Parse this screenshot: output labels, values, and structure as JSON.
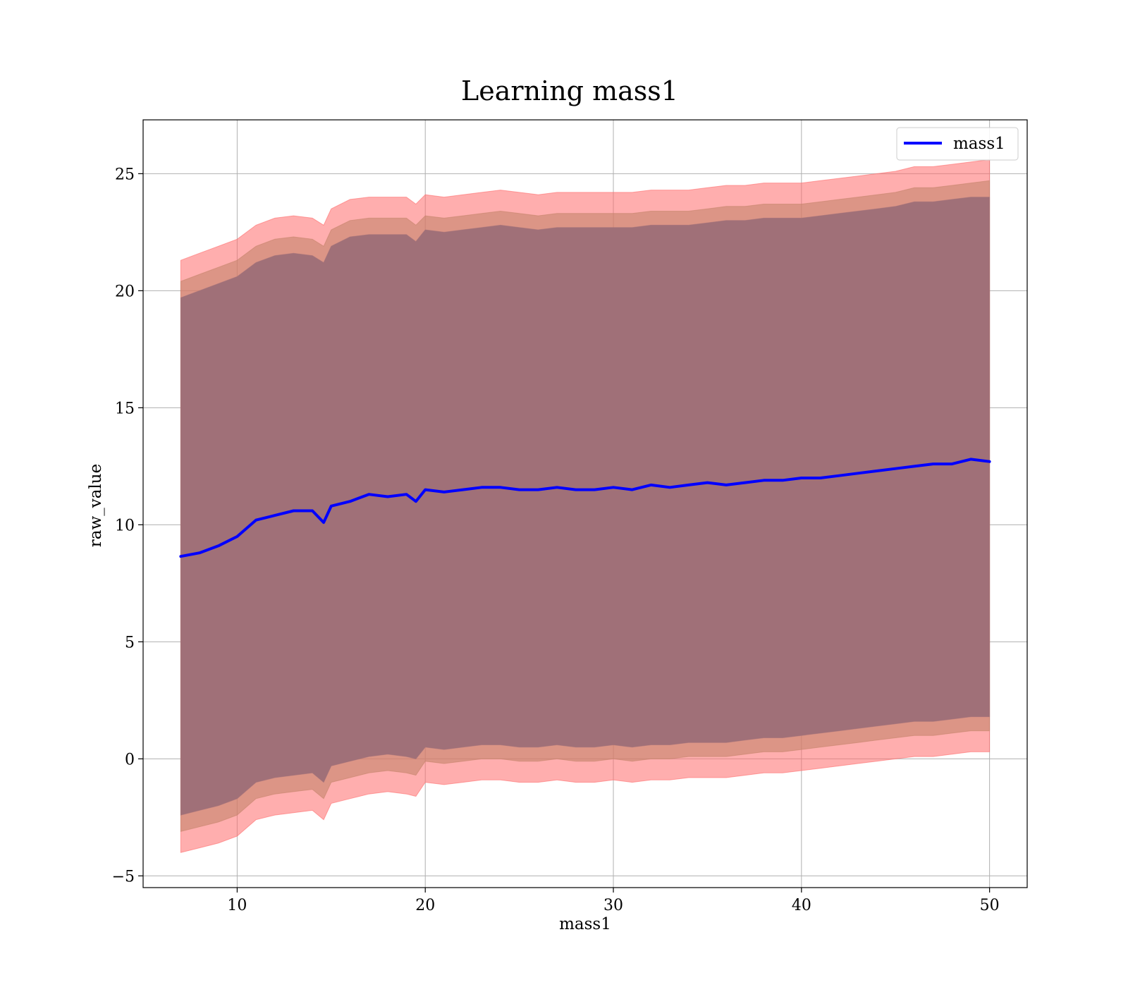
{
  "chart_data": {
    "type": "line",
    "title": "Learning mass1",
    "xlabel": "mass1",
    "ylabel": "raw_value",
    "xlim": [
      5,
      52
    ],
    "ylim": [
      -5.5,
      27.3
    ],
    "xticks": [
      10,
      20,
      30,
      40,
      50
    ],
    "xtick_labels": [
      "10",
      "20",
      "30",
      "40",
      "50"
    ],
    "yticks": [
      -5,
      0,
      5,
      10,
      15,
      20,
      25
    ],
    "ytick_labels": [
      "−5",
      "0",
      "5",
      "10",
      "15",
      "20",
      "25"
    ],
    "grid": true,
    "legend": {
      "position": "top-right",
      "entries": [
        "mass1"
      ]
    },
    "x": [
      7.0,
      8.0,
      9.0,
      10.0,
      11.0,
      12.0,
      13.0,
      14.0,
      14.6,
      15.0,
      16.0,
      17.0,
      18.0,
      19.0,
      19.5,
      20.0,
      21.0,
      22.0,
      23.0,
      24.0,
      25.0,
      26.0,
      27.0,
      28.0,
      29.0,
      30.0,
      31.0,
      32.0,
      33.0,
      34.0,
      35.0,
      36.0,
      37.0,
      38.0,
      39.0,
      40.0,
      41.0,
      42.0,
      43.0,
      44.0,
      45.0,
      46.0,
      47.0,
      48.0,
      49.0,
      50.0
    ],
    "series": [
      {
        "name": "mass1",
        "type": "line",
        "color": "#0000ff",
        "values": [
          8.65,
          8.8,
          9.1,
          9.5,
          10.2,
          10.4,
          10.6,
          10.6,
          10.1,
          10.8,
          11.0,
          11.3,
          11.2,
          11.3,
          11.0,
          11.5,
          11.4,
          11.5,
          11.6,
          11.6,
          11.5,
          11.5,
          11.6,
          11.5,
          11.5,
          11.6,
          11.5,
          11.7,
          11.6,
          11.7,
          11.8,
          11.7,
          11.8,
          11.9,
          11.9,
          12.0,
          12.0,
          12.1,
          12.2,
          12.3,
          12.4,
          12.5,
          12.6,
          12.6,
          12.8,
          12.7
        ]
      },
      {
        "name": "",
        "type": "band",
        "color": "#ff6b6b",
        "opacity": 0.55,
        "lower": [
          -4.0,
          -3.8,
          -3.6,
          -3.3,
          -2.6,
          -2.4,
          -2.3,
          -2.2,
          -2.6,
          -1.9,
          -1.7,
          -1.5,
          -1.4,
          -1.5,
          -1.6,
          -1.0,
          -1.1,
          -1.0,
          -0.9,
          -0.9,
          -1.0,
          -1.0,
          -0.9,
          -1.0,
          -1.0,
          -0.9,
          -1.0,
          -0.9,
          -0.9,
          -0.8,
          -0.8,
          -0.8,
          -0.7,
          -0.6,
          -0.6,
          -0.5,
          -0.4,
          -0.3,
          -0.2,
          -0.1,
          0.0,
          0.1,
          0.1,
          0.2,
          0.3,
          0.3
        ],
        "upper": [
          21.3,
          21.6,
          21.9,
          22.2,
          22.8,
          23.1,
          23.2,
          23.1,
          22.8,
          23.5,
          23.9,
          24.0,
          24.0,
          24.0,
          23.7,
          24.1,
          24.0,
          24.1,
          24.2,
          24.3,
          24.2,
          24.1,
          24.2,
          24.2,
          24.2,
          24.2,
          24.2,
          24.3,
          24.3,
          24.3,
          24.4,
          24.5,
          24.5,
          24.6,
          24.6,
          24.6,
          24.7,
          24.8,
          24.9,
          25.0,
          25.1,
          25.3,
          25.3,
          25.4,
          25.5,
          25.6
        ]
      },
      {
        "name": "",
        "type": "band",
        "color": "#c4836a",
        "opacity": 0.6,
        "lower": [
          -3.1,
          -2.9,
          -2.7,
          -2.4,
          -1.7,
          -1.5,
          -1.4,
          -1.3,
          -1.7,
          -1.0,
          -0.8,
          -0.6,
          -0.5,
          -0.6,
          -0.7,
          -0.1,
          -0.2,
          -0.1,
          0.0,
          0.0,
          -0.1,
          -0.1,
          0.0,
          -0.1,
          -0.1,
          0.0,
          -0.1,
          0.0,
          0.0,
          0.1,
          0.1,
          0.1,
          0.2,
          0.3,
          0.3,
          0.4,
          0.5,
          0.6,
          0.7,
          0.8,
          0.9,
          1.0,
          1.0,
          1.1,
          1.2,
          1.2
        ],
        "upper": [
          20.4,
          20.7,
          21.0,
          21.3,
          21.9,
          22.2,
          22.3,
          22.2,
          21.9,
          22.6,
          23.0,
          23.1,
          23.1,
          23.1,
          22.8,
          23.2,
          23.1,
          23.2,
          23.3,
          23.4,
          23.3,
          23.2,
          23.3,
          23.3,
          23.3,
          23.3,
          23.3,
          23.4,
          23.4,
          23.4,
          23.5,
          23.6,
          23.6,
          23.7,
          23.7,
          23.7,
          23.8,
          23.9,
          24.0,
          24.1,
          24.2,
          24.4,
          24.4,
          24.5,
          24.6,
          24.7
        ]
      },
      {
        "name": "",
        "type": "band",
        "color": "#a07078",
        "opacity": 1.0,
        "lower": [
          -2.4,
          -2.2,
          -2.0,
          -1.7,
          -1.0,
          -0.8,
          -0.7,
          -0.6,
          -1.0,
          -0.3,
          -0.1,
          0.1,
          0.2,
          0.1,
          0.0,
          0.5,
          0.4,
          0.5,
          0.6,
          0.6,
          0.5,
          0.5,
          0.6,
          0.5,
          0.5,
          0.6,
          0.5,
          0.6,
          0.6,
          0.7,
          0.7,
          0.7,
          0.8,
          0.9,
          0.9,
          1.0,
          1.1,
          1.2,
          1.3,
          1.4,
          1.5,
          1.6,
          1.6,
          1.7,
          1.8,
          1.8
        ],
        "upper": [
          19.7,
          20.0,
          20.3,
          20.6,
          21.2,
          21.5,
          21.6,
          21.5,
          21.2,
          21.9,
          22.3,
          22.4,
          22.4,
          22.4,
          22.1,
          22.6,
          22.5,
          22.6,
          22.7,
          22.8,
          22.7,
          22.6,
          22.7,
          22.7,
          22.7,
          22.7,
          22.7,
          22.8,
          22.8,
          22.8,
          22.9,
          23.0,
          23.0,
          23.1,
          23.1,
          23.1,
          23.2,
          23.3,
          23.4,
          23.5,
          23.6,
          23.8,
          23.8,
          23.9,
          24.0,
          24.0
        ]
      }
    ]
  }
}
